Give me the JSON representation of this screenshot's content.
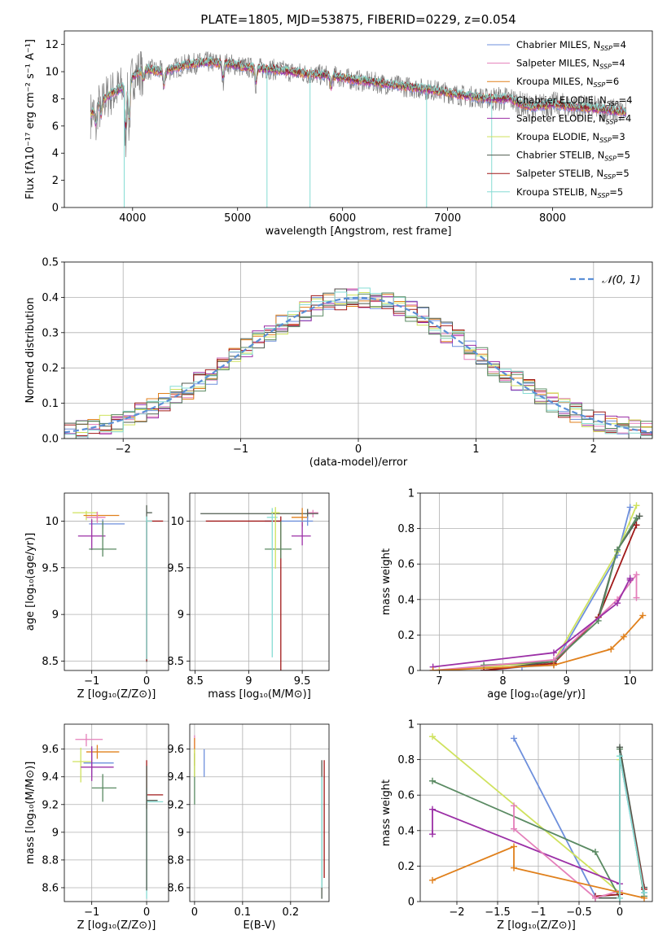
{
  "figure": {
    "title": "PLATE=1805, MJD=53875, FIBERID=0229, z=0.054"
  },
  "colors": {
    "chabrier_miles": "#6d8fdc",
    "salpeter_miles": "#e47fba",
    "kroupa_miles": "#e0801c",
    "chabrier_elodie": "#9b2fa6",
    "salpeter_elodie": "#9b2fa6",
    "kroupa_elodie": "#cfe25d",
    "chabrier_stelib": "#4f5b4f",
    "salpeter_stelib": "#a01818",
    "kroupa_stelib": "#86dcd4",
    "data": "#808080",
    "normal": "#5b8fd6",
    "green": "#5a8a62"
  },
  "chart_data": [
    {
      "id": "spectrum",
      "type": "line",
      "xlabel": "wavelength [Angstrom, rest frame]",
      "ylabel": "Flux [fλ10⁻¹⁷ erg cm⁻² s⁻¹ A⁻¹]",
      "xlim": [
        3350,
        8950
      ],
      "ylim": [
        0,
        13
      ],
      "xticks": [
        4000,
        5000,
        6000,
        7000,
        8000
      ],
      "yticks": [
        0,
        2,
        4,
        6,
        8,
        10,
        12
      ],
      "legend_position": "top-right",
      "legend": [
        {
          "label": "Chabrier MILES, N",
          "sub": "SSP",
          "value": "=4",
          "color": "#6d8fdc"
        },
        {
          "label": "Salpeter MILES, N",
          "sub": "SSP",
          "value": "=4",
          "color": "#e47fba"
        },
        {
          "label": "Kroupa MILES, N",
          "sub": "SSP",
          "value": "=6",
          "color": "#e0801c"
        },
        {
          "label": "Chabrier ELODIE, N",
          "sub": "SSP",
          "value": "=4",
          "color": "#9b2fa6"
        },
        {
          "label": "Salpeter ELODIE, N",
          "sub": "SSP",
          "value": "=4",
          "color": "#9b2fa6"
        },
        {
          "label": "Kroupa ELODIE, N",
          "sub": "SSP",
          "value": "=3",
          "color": "#cfe25d"
        },
        {
          "label": "Chabrier STELIB, N",
          "sub": "SSP",
          "value": "=5",
          "color": "#4f5b4f"
        },
        {
          "label": "Salpeter STELIB, N",
          "sub": "SSP",
          "value": "=5",
          "color": "#a01818"
        },
        {
          "label": "Kroupa STELIB, N",
          "sub": "SSP",
          "value": "=5",
          "color": "#86dcd4"
        }
      ],
      "continuum": [
        [
          3600,
          6.8
        ],
        [
          3700,
          7.8
        ],
        [
          3800,
          8.4
        ],
        [
          3900,
          8.8
        ],
        [
          4000,
          9.6
        ],
        [
          4100,
          10.2
        ],
        [
          4300,
          10.0
        ],
        [
          4500,
          10.5
        ],
        [
          4700,
          10.7
        ],
        [
          4900,
          10.6
        ],
        [
          5100,
          10.3
        ],
        [
          5300,
          10.2
        ],
        [
          5500,
          10.0
        ],
        [
          5700,
          9.8
        ],
        [
          5900,
          9.7
        ],
        [
          6100,
          9.4
        ],
        [
          6300,
          9.2
        ],
        [
          6500,
          9.0
        ],
        [
          6700,
          8.8
        ],
        [
          6900,
          8.6
        ],
        [
          7100,
          8.3
        ],
        [
          7300,
          8.1
        ],
        [
          7400,
          8.0
        ],
        [
          7600,
          8.0
        ],
        [
          7700,
          7.6
        ],
        [
          7800,
          7.4
        ],
        [
          8000,
          7.6
        ],
        [
          8200,
          7.4
        ],
        [
          8400,
          7.3
        ],
        [
          8600,
          7.1
        ],
        [
          8700,
          7.0
        ]
      ],
      "data_range": [
        3600,
        7400
      ],
      "models_range": [
        3600,
        8700
      ],
      "dropouts": [
        [
          3920,
          0
        ],
        [
          5280,
          0
        ],
        [
          5690,
          0
        ],
        [
          6800,
          0
        ],
        [
          7420,
          0
        ]
      ]
    },
    {
      "id": "residuals",
      "type": "line",
      "xlabel": "(data-model)/error",
      "ylabel": "Normed distribution",
      "xlim": [
        -2.5,
        2.5
      ],
      "ylim": [
        0,
        0.5
      ],
      "xticks": [
        -2,
        -1,
        0,
        1,
        2
      ],
      "yticks": [
        0.0,
        0.1,
        0.2,
        0.3,
        0.4,
        0.5
      ],
      "legend_position": "top-right",
      "legend_label": "𝒩(0, 1)",
      "series": [
        {
          "name": "gaussian",
          "mu": 0,
          "sigma": 1
        }
      ],
      "bin_width": 0.1
    },
    {
      "id": "age_vs_Z",
      "type": "scatter",
      "xlabel": "Z [log₁₀(Z/Z⊙)]",
      "ylabel": "age  [log₁₀(age/yr)]",
      "xlim": [
        -1.5,
        0.4
      ],
      "ylim": [
        8.4,
        10.3
      ],
      "xticks": [
        -1,
        0
      ],
      "yticks": [
        8.5,
        9.0,
        9.5,
        10.0
      ],
      "points": [
        {
          "x": -1.1,
          "y": 10.09,
          "xerr": [
            0.25,
            0.2
          ],
          "yerr": [
            0.08,
            0.02
          ],
          "color": "#cfe25d"
        },
        {
          "x": -0.9,
          "y": 10.06,
          "xerr": [
            0.25,
            0.4
          ],
          "yerr": [
            0.06,
            0.04
          ],
          "color": "#e0801c"
        },
        {
          "x": -0.9,
          "y": 10.04,
          "xerr": [
            0.2,
            0.15
          ],
          "yerr": [
            0.06,
            0.06
          ],
          "color": "#e47fba"
        },
        {
          "x": -0.8,
          "y": 9.97,
          "xerr": [
            0.25,
            0.4
          ],
          "yerr": [
            0.05,
            0.05
          ],
          "color": "#6d8fdc"
        },
        {
          "x": -1.0,
          "y": 9.84,
          "xerr": [
            0.25,
            0.25
          ],
          "yerr": [
            0.15,
            0.18
          ],
          "color": "#9b2fa6"
        },
        {
          "x": -0.8,
          "y": 9.7,
          "xerr": [
            0.25,
            0.25
          ],
          "yerr": [
            0.08,
            0.3
          ],
          "color": "#5a8a62"
        },
        {
          "x": 0.0,
          "y": 10.09,
          "xerr": [
            0.0,
            0.1
          ],
          "yerr": [
            1.6,
            0.08
          ],
          "color": "#4f5b4f"
        },
        {
          "x": 0.0,
          "y": 10.0,
          "xerr": [
            0.0,
            0.3
          ],
          "yerr": [
            1.5,
            0.0
          ],
          "color": "#a01818"
        },
        {
          "x": 0.0,
          "y": 10.0,
          "xerr": [
            0.0,
            0.1
          ],
          "yerr": [
            1.48,
            0.05
          ],
          "color": "#86dcd4"
        }
      ]
    },
    {
      "id": "age_vs_mass",
      "type": "scatter",
      "xlabel": "mass [log₁₀(M/M⊙)]",
      "ylabel": "",
      "xlim": [
        8.45,
        9.75
      ],
      "ylim": [
        8.4,
        10.3
      ],
      "xticks": [
        8.5,
        9.0,
        9.5
      ],
      "yticks": [
        8.5,
        9.0,
        9.5,
        10.0
      ],
      "points": [
        {
          "x": 9.6,
          "y": 10.09,
          "xerr": [
            0.05,
            0.05
          ],
          "yerr": [
            0.05,
            0.03
          ],
          "color": "#e47fba"
        },
        {
          "x": 9.55,
          "y": 10.08,
          "xerr": [
            1.0,
            0.1
          ],
          "yerr": [
            0.05,
            0.05
          ],
          "color": "#4f5b4f"
        },
        {
          "x": 9.5,
          "y": 10.04,
          "xerr": [
            0.1,
            0.05
          ],
          "yerr": [
            0.1,
            0.1
          ],
          "color": "#e0801c"
        },
        {
          "x": 9.55,
          "y": 10.0,
          "xerr": [
            0.4,
            0.05
          ],
          "yerr": [
            0.05,
            0.05
          ],
          "color": "#6d8fdc"
        },
        {
          "x": 9.3,
          "y": 10.0,
          "xerr": [
            0.7,
            0.0
          ],
          "yerr": [
            1.65,
            0.05
          ],
          "color": "#a01818"
        },
        {
          "x": 9.5,
          "y": 9.84,
          "xerr": [
            0.1,
            0.08
          ],
          "yerr": [
            0.1,
            0.15
          ],
          "color": "#9b2fa6"
        },
        {
          "x": 9.3,
          "y": 9.7,
          "xerr": [
            0.15,
            0.1
          ],
          "yerr": [
            0.1,
            0.3
          ],
          "color": "#5a8a62"
        },
        {
          "x": 9.22,
          "y": 10.04,
          "xerr": [
            0.05,
            0.05
          ],
          "yerr": [
            1.5,
            0.1
          ],
          "color": "#86dcd4"
        },
        {
          "x": 9.25,
          "y": 10.09,
          "xerr": [
            0.04,
            0.04
          ],
          "yerr": [
            0.6,
            0.06
          ],
          "color": "#cfe25d"
        }
      ]
    },
    {
      "id": "mass_weight_vs_age",
      "type": "line",
      "xlabel": "age  [log₁₀(age/yr)]",
      "ylabel": "mass weight",
      "xlim": [
        6.7,
        10.35
      ],
      "ylim": [
        0,
        1.0
      ],
      "xticks": [
        7,
        8,
        9,
        10
      ],
      "yticks": [
        0.0,
        0.2,
        0.4,
        0.6,
        0.8,
        1.0
      ],
      "series": [
        {
          "color": "#6d8fdc",
          "x": [
            7.7,
            8.3,
            8.8,
            9.8,
            10.0
          ],
          "y": [
            0.0,
            0.02,
            0.03,
            0.65,
            0.92
          ]
        },
        {
          "color": "#cfe25d",
          "x": [
            7.0,
            8.8,
            9.8,
            10.1
          ],
          "y": [
            0.0,
            0.05,
            0.67,
            0.93
          ]
        },
        {
          "color": "#4f5b4f",
          "x": [
            7.7,
            8.8,
            9.5,
            9.8,
            10.15
          ],
          "y": [
            0.0,
            0.05,
            0.3,
            0.68,
            0.87
          ]
        },
        {
          "color": "#a01818",
          "x": [
            7.7,
            8.8,
            9.5,
            10.1
          ],
          "y": [
            0.0,
            0.04,
            0.3,
            0.82
          ]
        },
        {
          "color": "#5a8a62",
          "x": [
            7.7,
            8.8,
            9.5,
            9.8,
            10.1
          ],
          "y": [
            0.03,
            0.05,
            0.28,
            0.68,
            0.86
          ]
        },
        {
          "color": "#e47fba",
          "x": [
            6.9,
            8.8,
            9.8,
            10.1,
            10.1
          ],
          "y": [
            0.0,
            0.06,
            0.4,
            0.54,
            0.41
          ]
        },
        {
          "color": "#9b2fa6",
          "x": [
            6.9,
            8.8,
            9.8,
            10.0,
            10.0
          ],
          "y": [
            0.02,
            0.1,
            0.38,
            0.52,
            0.51
          ]
        },
        {
          "color": "#e0801c",
          "x": [
            6.9,
            8.8,
            9.7,
            9.9,
            10.2
          ],
          "y": [
            0.0,
            0.03,
            0.12,
            0.19,
            0.31
          ]
        }
      ]
    },
    {
      "id": "mass_vs_Z",
      "type": "scatter",
      "xlabel": "Z [log₁₀(Z/Z⊙)]",
      "ylabel": "mass [log₁₀(M/M⊙)]",
      "xlim": [
        -1.5,
        0.4
      ],
      "ylim": [
        8.5,
        9.78
      ],
      "xticks": [
        -1,
        0
      ],
      "yticks": [
        8.6,
        8.8,
        9.0,
        9.2,
        9.4,
        9.6
      ],
      "points": [
        {
          "x": -1.1,
          "y": 9.67,
          "xerr": [
            0.2,
            0.3
          ],
          "yerr": [
            0.05,
            0.04
          ],
          "color": "#e47fba"
        },
        {
          "x": -0.9,
          "y": 9.58,
          "xerr": [
            0.2,
            0.4
          ],
          "yerr": [
            0.05,
            0.05
          ],
          "color": "#e0801c"
        },
        {
          "x": -1.2,
          "y": 9.51,
          "xerr": [
            0.15,
            0.2
          ],
          "yerr": [
            0.15,
            0.1
          ],
          "color": "#cfe25d"
        },
        {
          "x": -1.0,
          "y": 9.5,
          "xerr": [
            0.15,
            0.4
          ],
          "yerr": [
            0.1,
            0.1
          ],
          "color": "#6d8fdc"
        },
        {
          "x": -1.0,
          "y": 9.47,
          "xerr": [
            0.2,
            0.4
          ],
          "yerr": [
            0.1,
            0.15
          ],
          "color": "#9b2fa6"
        },
        {
          "x": -0.8,
          "y": 9.32,
          "xerr": [
            0.2,
            0.25
          ],
          "yerr": [
            0.1,
            0.1
          ],
          "color": "#5a8a62"
        },
        {
          "x": 0.0,
          "y": 9.27,
          "xerr": [
            0.0,
            0.3
          ],
          "yerr": [
            0.1,
            0.25
          ],
          "color": "#a01818"
        },
        {
          "x": 0.0,
          "y": 9.22,
          "xerr": [
            0.0,
            0.3
          ],
          "yerr": [
            0.7,
            0.1
          ],
          "color": "#86dcd4"
        },
        {
          "x": 0.0,
          "y": 9.23,
          "xerr": [
            0.0,
            0.2
          ],
          "yerr": [
            0.65,
            0.25
          ],
          "color": "#4f5b4f"
        }
      ]
    },
    {
      "id": "mass_vs_EBV",
      "type": "scatter",
      "xlabel": "E(B-V)",
      "ylabel": "",
      "xlim": [
        -0.01,
        0.28
      ],
      "ylim": [
        8.5,
        9.78
      ],
      "xticks": [
        0.0,
        0.1,
        0.2
      ],
      "yticks": [
        8.6,
        8.8,
        9.0,
        9.2,
        9.4,
        9.6
      ],
      "points": [
        {
          "x": 0.0,
          "y": 9.65,
          "xerr": [
            0.0,
            0.0
          ],
          "yerr": [
            0.05,
            0.05
          ],
          "color": "#e47fba"
        },
        {
          "x": 0.0,
          "y": 9.58,
          "xerr": [
            0.0,
            0.0
          ],
          "yerr": [
            0.1,
            0.1
          ],
          "color": "#e0801c"
        },
        {
          "x": 0.0,
          "y": 9.42,
          "xerr": [
            0.0,
            0.0
          ],
          "yerr": [
            0.22,
            0.15
          ],
          "color": "#5a8a62"
        },
        {
          "x": 0.0,
          "y": 9.5,
          "xerr": [
            0.0,
            0.0
          ],
          "yerr": [
            0.1,
            0.1
          ],
          "color": "#cfe25d"
        },
        {
          "x": 0.02,
          "y": 9.5,
          "xerr": [
            0.0,
            0.0
          ],
          "yerr": [
            0.1,
            0.1
          ],
          "color": "#6d8fdc"
        },
        {
          "x": 0.27,
          "y": 9.27,
          "xerr": [
            0.0,
            0.0
          ],
          "yerr": [
            0.6,
            0.25
          ],
          "color": "#a01818"
        },
        {
          "x": 0.265,
          "y": 9.22,
          "xerr": [
            0.0,
            0.0
          ],
          "yerr": [
            0.7,
            0.3
          ],
          "color": "#4f5b4f"
        },
        {
          "x": 0.265,
          "y": 9.1,
          "xerr": [
            0.0,
            0.0
          ],
          "yerr": [
            0.5,
            0.3
          ],
          "color": "#86dcd4"
        }
      ]
    },
    {
      "id": "mass_weight_vs_Z",
      "type": "line",
      "xlabel": "Z [log₁₀(Z/Z⊙)]",
      "ylabel": "mass weight",
      "xlim": [
        -2.45,
        0.4
      ],
      "ylim": [
        0,
        1.0
      ],
      "xticks": [
        -2.0,
        -1.5,
        -1.0,
        -0.5,
        0.0
      ],
      "yticks": [
        0.0,
        0.2,
        0.4,
        0.6,
        0.8,
        1.0
      ],
      "series": [
        {
          "color": "#6d8fdc",
          "x": [
            -1.3,
            -0.3,
            0.0,
            0.0,
            0.3
          ],
          "y": [
            0.92,
            0.03,
            0.04,
            0.82,
            0.05
          ]
        },
        {
          "color": "#cfe25d",
          "x": [
            -2.3,
            0.0,
            0.0
          ],
          "y": [
            0.93,
            0.05,
            0.8
          ]
        },
        {
          "color": "#5a8a62",
          "x": [
            -2.3,
            -0.3,
            0.0,
            0.0,
            0.3
          ],
          "y": [
            0.68,
            0.28,
            0.02,
            0.86,
            0.03
          ]
        },
        {
          "color": "#4f5b4f",
          "x": [
            -0.3,
            0.0,
            0.0,
            0.3
          ],
          "y": [
            0.02,
            0.02,
            0.87,
            0.08
          ]
        },
        {
          "color": "#a01818",
          "x": [
            -0.3,
            0.0,
            0.0,
            0.3
          ],
          "y": [
            0.03,
            0.04,
            0.82,
            0.07
          ]
        },
        {
          "color": "#9b2fa6",
          "x": [
            -2.3,
            -2.3,
            0.0
          ],
          "y": [
            0.38,
            0.52,
            0.1
          ]
        },
        {
          "color": "#e47fba",
          "x": [
            -1.3,
            -1.3,
            -0.3,
            0.0
          ],
          "y": [
            0.54,
            0.41,
            0.02,
            0.06
          ]
        },
        {
          "color": "#e0801c",
          "x": [
            -2.3,
            -1.3,
            -1.3,
            0.3
          ],
          "y": [
            0.12,
            0.31,
            0.19,
            0.02
          ]
        },
        {
          "color": "#86dcd4",
          "x": [
            0.0,
            0.0,
            0.3
          ],
          "y": [
            0.02,
            0.82,
            0.05
          ]
        }
      ]
    }
  ]
}
